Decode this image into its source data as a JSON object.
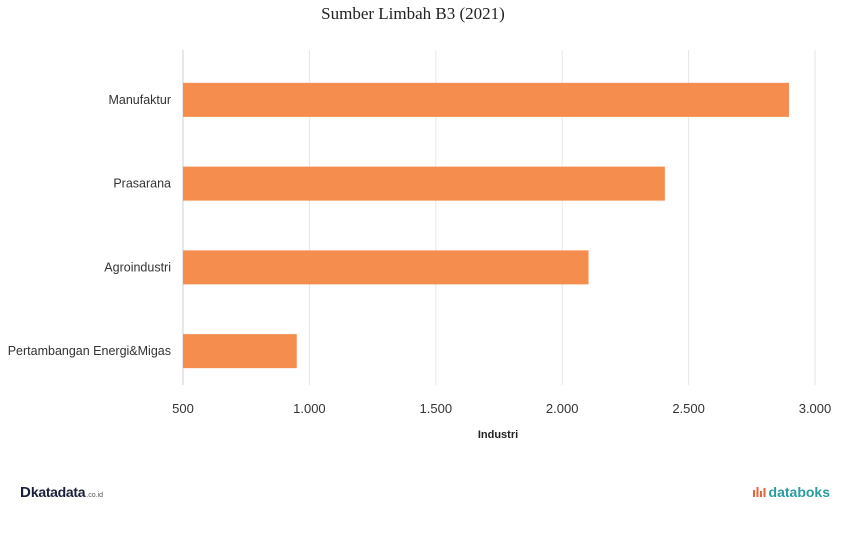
{
  "chart_data": {
    "type": "bar",
    "orientation": "horizontal",
    "title": "Sumber Limbah B3 (2021)",
    "xlabel": "Industri",
    "ylabel": "",
    "categories": [
      "Manufaktur",
      "Prasarana",
      "Agroindustri",
      "Pertambangan Energi&Migas"
    ],
    "values": [
      2897,
      2406,
      2104,
      950
    ],
    "xlim": [
      500,
      3000
    ],
    "xticks": [
      500,
      1000,
      1500,
      2000,
      2500,
      3000
    ],
    "xtick_labels": [
      "500",
      "1.000",
      "1.500",
      "2.000",
      "2.500",
      "3.000"
    ],
    "grid": "vertical",
    "legend": "none",
    "bar_color": "#f58d4f"
  },
  "branding": {
    "left_mark": "D",
    "left_text": "katadata",
    "left_suffix": ".co.id",
    "right_text": "databoks"
  }
}
